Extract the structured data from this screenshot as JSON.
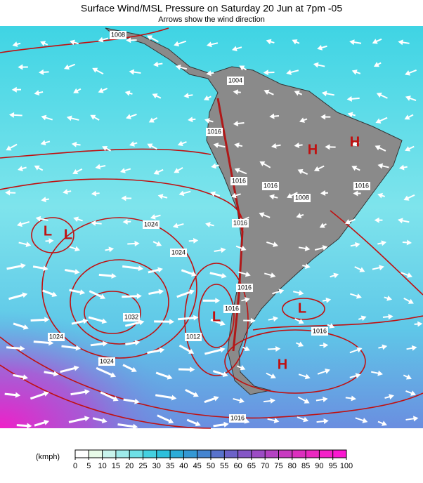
{
  "header": {
    "title": "Surface Wind/MSL Pressure on Saturday 20 Jun at 7pm -05",
    "subtitle": "Arrows show the wind direction"
  },
  "map": {
    "isobar_labels": [
      "1008",
      "1004",
      "1016",
      "1016",
      "1016",
      "1008",
      "1016",
      "1016",
      "1024",
      "1024",
      "1032",
      "1024",
      "1016",
      "1012",
      "1016",
      "1016",
      "1024",
      "1016"
    ],
    "pressure_centers": [
      "L",
      "L",
      "L",
      "L",
      "H",
      "H",
      "H"
    ]
  },
  "legend": {
    "unit": "(kmph)",
    "ticks": [
      "0",
      "5",
      "10",
      "15",
      "20",
      "25",
      "30",
      "35",
      "40",
      "45",
      "50",
      "55",
      "60",
      "65",
      "70",
      "75",
      "80",
      "85",
      "90",
      "95",
      "100"
    ],
    "colors": [
      "#ffffff",
      "#e8fae8",
      "#c8f4ec",
      "#9eeaea",
      "#6ee0e6",
      "#44d0e0",
      "#2ec0dc",
      "#2cacd8",
      "#3498d4",
      "#4484d0",
      "#5872cc",
      "#6c62c8",
      "#8456c6",
      "#9c4cc4",
      "#b442c2",
      "#c83ac0",
      "#dc30be",
      "#ea28c0",
      "#f420c8",
      "#fa18d0"
    ]
  }
}
